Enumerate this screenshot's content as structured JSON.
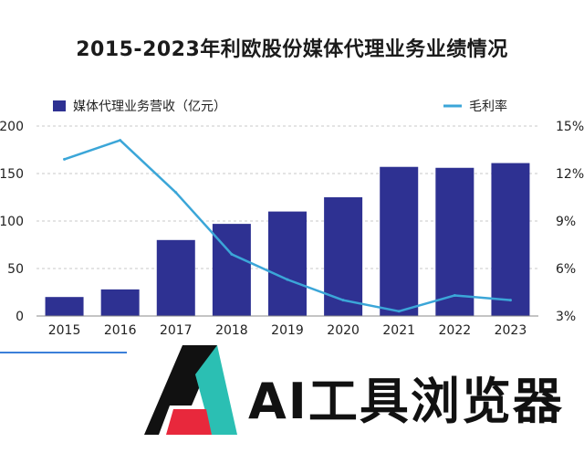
{
  "chart_data": {
    "type": "bar+line",
    "title": "2015-2023年利欧股份媒体代理业务业绩情况",
    "categories": [
      "2015",
      "2016",
      "2017",
      "2018",
      "2019",
      "2020",
      "2021",
      "2022",
      "2023"
    ],
    "series": [
      {
        "name": "媒体代理业务营收（亿元）",
        "type": "bar",
        "axis": "left",
        "color": "#2e3192",
        "values": [
          20,
          28,
          80,
          97,
          110,
          125,
          157,
          156,
          161
        ]
      },
      {
        "name": "毛利率",
        "type": "line",
        "axis": "right",
        "color": "#3ba6d8",
        "values": [
          12.9,
          14.1,
          10.8,
          6.9,
          5.3,
          4.0,
          3.3,
          4.3,
          4.0
        ]
      }
    ],
    "y_left": {
      "ticks": [
        "0",
        "50",
        "100",
        "150",
        "200"
      ],
      "range": [
        0,
        200
      ]
    },
    "y_right": {
      "ticks": [
        "3%",
        "6%",
        "9%",
        "12%",
        "15%"
      ],
      "range": [
        3,
        15
      ]
    },
    "grid": "horizontal-dashed",
    "legend": "top"
  },
  "watermark": {
    "text": "AI工具浏览器",
    "logo_colors": [
      "#111111",
      "#2bbfb3",
      "#e8283c"
    ]
  }
}
